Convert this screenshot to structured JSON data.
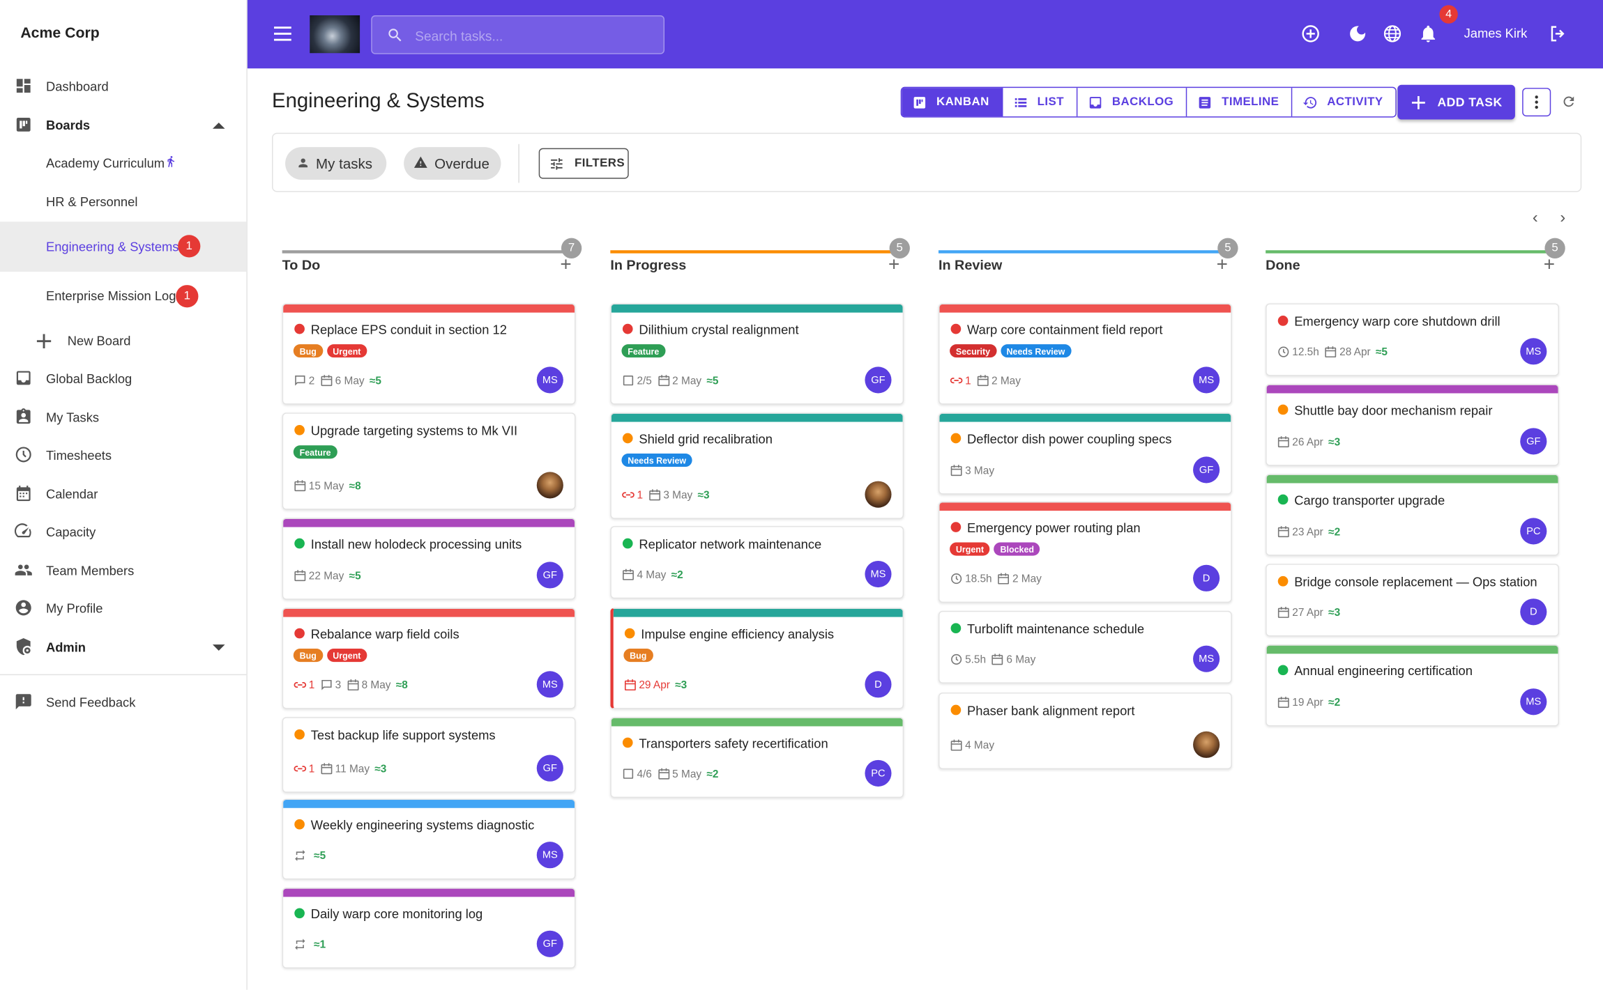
{
  "app": {
    "company": "Acme Corp",
    "user": "James Kirk",
    "notifications": "4",
    "search_placeholder": "Search tasks..."
  },
  "sidebar": {
    "items": [
      {
        "label": "Dashboard",
        "icon": "dashboard-icon"
      },
      {
        "label": "Boards",
        "icon": "boards-icon"
      },
      {
        "label": "Academy Curriculum"
      },
      {
        "label": "HR & Personnel"
      },
      {
        "label": "Engineering & Systems",
        "badge": "1"
      },
      {
        "label": "Enterprise Mission Log",
        "badge": "1"
      },
      {
        "label": "New Board",
        "icon": "plus-icon"
      },
      {
        "label": "Global Backlog",
        "icon": "inbox-icon"
      },
      {
        "label": "My Tasks",
        "icon": "clipboard-user-icon"
      },
      {
        "label": "Timesheets",
        "icon": "clock-icon"
      },
      {
        "label": "Calendar",
        "icon": "calendar-icon"
      },
      {
        "label": "Capacity",
        "icon": "speedometer-icon"
      },
      {
        "label": "Team Members",
        "icon": "people-icon"
      },
      {
        "label": "My Profile",
        "icon": "account-circle-icon"
      },
      {
        "label": "Admin",
        "icon": "admin-shield-icon"
      },
      {
        "label": "Send Feedback",
        "icon": "feedback-icon"
      }
    ]
  },
  "page": {
    "title": "Engineering & Systems"
  },
  "views": {
    "kanban": "KANBAN",
    "list": "LIST",
    "backlog": "BACKLOG",
    "timeline": "TIMELINE",
    "activity": "ACTIVITY",
    "add_task": "ADD TASK"
  },
  "filters": {
    "my_tasks": "My tasks",
    "overdue": "Overdue",
    "filters": "FILTERS"
  },
  "colors": {
    "primary": "#5b3fe0",
    "urgent": "#e53935",
    "high": "#fb8c00",
    "low": "#19b552",
    "teal": "#26a69a",
    "purple": "#ab47bc",
    "blue": "#42a5f5",
    "green": "#66bb6a",
    "bug": "#e67e22",
    "feature": "#2e9e55",
    "needs_review": "#1e88e5",
    "security": "#d32f2f",
    "blocked": "#ab47bc"
  },
  "columns": [
    {
      "title": "To Do",
      "count": "7",
      "color": "#9e9e9e",
      "cards": [
        {
          "title": "Replace EPS conduit in section 12",
          "dot": "#e53935",
          "bar": "#ef5350",
          "tags": [
            {
              "t": "Bug",
              "c": "#e67e22"
            },
            {
              "t": "Urgent",
              "c": "#e53935"
            }
          ],
          "comments": "2",
          "date": "6 May",
          "points": "≈5",
          "avatar": "MS"
        },
        {
          "title": "Upgrade targeting systems to Mk VII",
          "dot": "#fb8c00",
          "tags": [
            {
              "t": "Feature",
              "c": "#2e9e55"
            }
          ],
          "date": "15 May",
          "points": "≈8",
          "avatar": "photo"
        },
        {
          "title": "Install new holodeck processing units",
          "dot": "#19b552",
          "bar": "#ab47bc",
          "date": "22 May",
          "points": "≈5",
          "avatar": "GF"
        },
        {
          "title": "Rebalance warp field coils",
          "dot": "#e53935",
          "bar": "#ef5350",
          "tags": [
            {
              "t": "Bug",
              "c": "#e67e22"
            },
            {
              "t": "Urgent",
              "c": "#e53935"
            }
          ],
          "links": "1",
          "comments": "3",
          "date": "8 May",
          "points": "≈8",
          "avatar": "MS"
        },
        {
          "title": "Test backup life support systems",
          "dot": "#fb8c00",
          "links": "1",
          "date": "11 May",
          "points": "≈3",
          "avatar": "GF"
        },
        {
          "title": "Weekly engineering systems diagnostic",
          "dot": "#fb8c00",
          "bar": "#42a5f5",
          "repeat": true,
          "points": "≈5",
          "avatar": "MS"
        },
        {
          "title": "Daily warp core monitoring log",
          "dot": "#19b552",
          "bar": "#ab47bc",
          "repeat": true,
          "points": "≈1",
          "avatar": "GF"
        }
      ]
    },
    {
      "title": "In Progress",
      "count": "5",
      "color": "#fb8c00",
      "cards": [
        {
          "title": "Dilithium crystal realignment",
          "dot": "#e53935",
          "bar": "#26a69a",
          "tags": [
            {
              "t": "Feature",
              "c": "#2e9e55"
            }
          ],
          "checklist": "2/5",
          "date": "2 May",
          "points": "≈5",
          "avatar": "GF"
        },
        {
          "title": "Shield grid recalibration",
          "dot": "#fb8c00",
          "bar": "#26a69a",
          "tags": [
            {
              "t": "Needs Review",
              "c": "#1e88e5"
            }
          ],
          "links": "1",
          "date": "3 May",
          "points": "≈3",
          "avatar": "photo"
        },
        {
          "title": "Replicator network maintenance",
          "dot": "#19b552",
          "date": "4 May",
          "points": "≈2",
          "avatar": "MS"
        },
        {
          "title": "Impulse engine efficiency analysis",
          "dot": "#fb8c00",
          "bar": "#26a69a",
          "tags": [
            {
              "t": "Bug",
              "c": "#e67e22"
            }
          ],
          "date": "29 Apr",
          "overdue": true,
          "points": "≈3",
          "avatar": "D"
        },
        {
          "title": "Transporters safety recertification",
          "dot": "#fb8c00",
          "bar": "#66bb6a",
          "checklist": "4/6",
          "date": "5 May",
          "points": "≈2",
          "avatar": "PC"
        }
      ]
    },
    {
      "title": "In Review",
      "count": "5",
      "color": "#42a5f5",
      "cards": [
        {
          "title": "Warp core containment field report",
          "dot": "#e53935",
          "bar": "#ef5350",
          "tags": [
            {
              "t": "Security",
              "c": "#d32f2f"
            },
            {
              "t": "Needs Review",
              "c": "#1e88e5"
            }
          ],
          "links": "1",
          "date": "2 May",
          "avatar": "MS"
        },
        {
          "title": "Deflector dish power coupling specs",
          "dot": "#fb8c00",
          "bar": "#26a69a",
          "date": "3 May",
          "avatar": "GF"
        },
        {
          "title": "Emergency power routing plan",
          "dot": "#e53935",
          "bar": "#ef5350",
          "tags": [
            {
              "t": "Urgent",
              "c": "#e53935"
            },
            {
              "t": "Blocked",
              "c": "#ab47bc"
            }
          ],
          "hours": "18.5h",
          "date": "2 May",
          "avatar": "D"
        },
        {
          "title": "Turbolift maintenance schedule",
          "dot": "#19b552",
          "hours": "5.5h",
          "date": "6 May",
          "avatar": "MS"
        },
        {
          "title": "Phaser bank alignment report",
          "dot": "#fb8c00",
          "date": "4 May",
          "avatar": "photo"
        }
      ]
    },
    {
      "title": "Done",
      "count": "5",
      "color": "#66bb6a",
      "cards": [
        {
          "title": "Emergency warp core shutdown drill",
          "dot": "#e53935",
          "hours": "12.5h",
          "date": "28 Apr",
          "points": "≈5",
          "avatar": "MS"
        },
        {
          "title": "Shuttle bay door mechanism repair",
          "dot": "#fb8c00",
          "bar": "#ab47bc",
          "date": "26 Apr",
          "points": "≈3",
          "avatar": "GF"
        },
        {
          "title": "Cargo transporter upgrade",
          "dot": "#19b552",
          "bar": "#66bb6a",
          "date": "23 Apr",
          "points": "≈2",
          "avatar": "PC"
        },
        {
          "title": "Bridge console replacement — Ops station",
          "dot": "#fb8c00",
          "date": "27 Apr",
          "points": "≈3",
          "avatar": "D"
        },
        {
          "title": "Annual engineering certification",
          "dot": "#19b552",
          "bar": "#66bb6a",
          "date": "19 Apr",
          "points": "≈2",
          "avatar": "MS"
        }
      ]
    }
  ]
}
